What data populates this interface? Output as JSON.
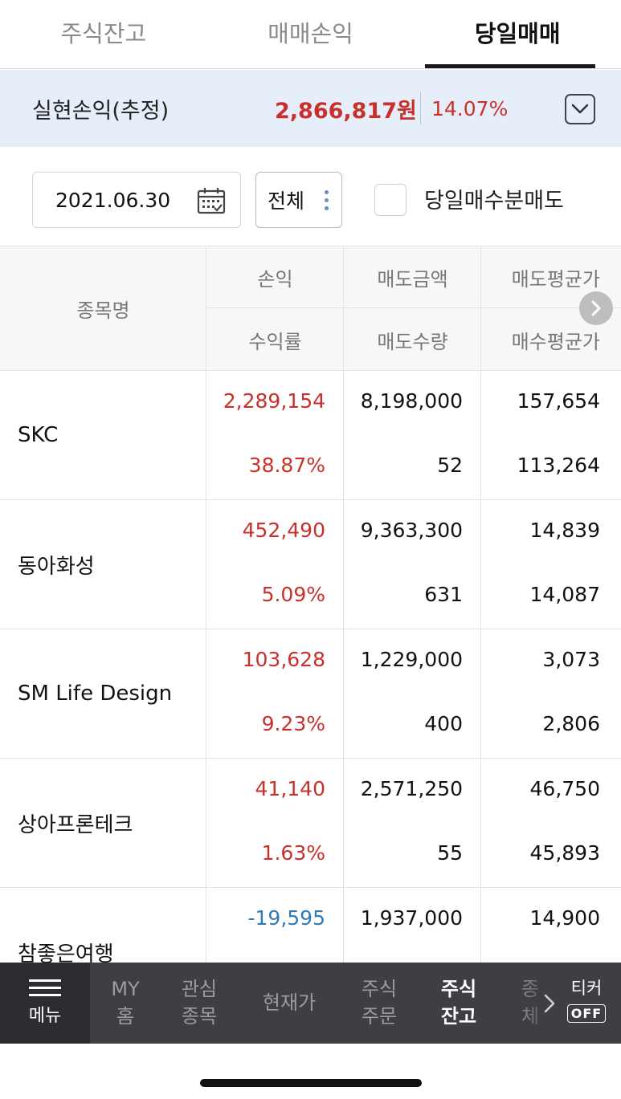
{
  "tabs": [
    {
      "label": "주식잔고",
      "active": false
    },
    {
      "label": "매매손익",
      "active": false
    },
    {
      "label": "당일매매",
      "active": true
    }
  ],
  "summary": {
    "label": "실현손익(추정)",
    "amount": "2,866,817원",
    "rate": "14.07%"
  },
  "filters": {
    "date": "2021.06.30",
    "select": "전체",
    "checkbox_label": "당일매수분매도",
    "checkbox_checked": false
  },
  "table": {
    "headers": {
      "name": "종목명",
      "profit": "손익",
      "rate": "수익률",
      "sell_amount": "매도금액",
      "sell_qty": "매도수량",
      "sell_avg": "매도평균가",
      "buy_avg": "매수평균가"
    },
    "rows": [
      {
        "name": "SKC",
        "profit": "2,289,154",
        "rate": "38.87%",
        "sell_amount": "8,198,000",
        "sell_qty": "52",
        "sell_avg": "157,654",
        "buy_avg": "113,264",
        "sign": "positive"
      },
      {
        "name": "동아화성",
        "profit": "452,490",
        "rate": "5.09%",
        "sell_amount": "9,363,300",
        "sell_qty": "631",
        "sell_avg": "14,839",
        "buy_avg": "14,087",
        "sign": "positive"
      },
      {
        "name": "SM Life Design",
        "profit": "103,628",
        "rate": "9.23%",
        "sell_amount": "1,229,000",
        "sell_qty": "400",
        "sell_avg": "3,073",
        "buy_avg": "2,806",
        "sign": "positive"
      },
      {
        "name": "상아프론테크",
        "profit": "41,140",
        "rate": "1.63%",
        "sell_amount": "2,571,250",
        "sell_qty": "55",
        "sell_avg": "46,750",
        "buy_avg": "45,893",
        "sign": "positive"
      },
      {
        "name": "참좋은여행",
        "profit": "-19,595",
        "rate": "",
        "sell_amount": "1,937,000",
        "sell_qty": "",
        "sell_avg": "14,900",
        "buy_avg": "",
        "sign": "negative"
      }
    ]
  },
  "bottom_nav": {
    "menu_label": "메뉴",
    "items": [
      {
        "line1": "MY",
        "line2": "홈",
        "active": false
      },
      {
        "line1": "관심",
        "line2": "종목",
        "active": false
      },
      {
        "line1": "현재가",
        "line2": "",
        "active": false
      },
      {
        "line1": "주식",
        "line2": "주문",
        "active": false
      },
      {
        "line1": "주식",
        "line2": "잔고",
        "active": true
      },
      {
        "line1": "종",
        "line2": "체",
        "active": false
      }
    ],
    "ticker_label": "티커",
    "ticker_state": "OFF"
  },
  "colors": {
    "positive": "#c9302c",
    "negative": "#2f7ab8",
    "summary_bg": "#e6eff9",
    "nav_bg": "#3d3f44"
  }
}
